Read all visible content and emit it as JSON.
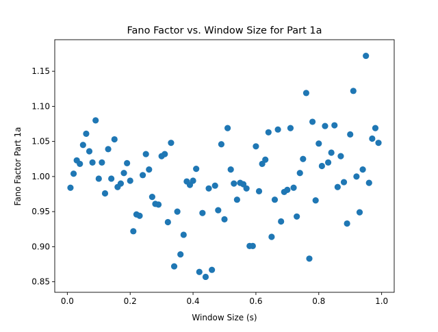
{
  "chart_data": {
    "type": "scatter",
    "title": "Fano Factor vs. Window Size for Part 1a",
    "xlabel": "Window Size (s)",
    "ylabel": "Fano Factor Part 1a",
    "xlim": [
      -0.04,
      1.04
    ],
    "ylim": [
      0.835,
      1.195
    ],
    "xticks": [
      0.0,
      0.2,
      0.4,
      0.6,
      0.8,
      1.0
    ],
    "xtick_labels": [
      "0.0",
      "0.2",
      "0.4",
      "0.6",
      "0.8",
      "1.0"
    ],
    "yticks": [
      0.85,
      0.9,
      0.95,
      1.0,
      1.05,
      1.1,
      1.15
    ],
    "ytick_labels": [
      "0.85",
      "0.90",
      "0.95",
      "1.00",
      "1.05",
      "1.10",
      "1.15"
    ],
    "grid": false,
    "marker_color": "#1f77b4",
    "series": [
      {
        "points": [
          [
            0.01,
            0.984
          ],
          [
            0.02,
            1.004
          ],
          [
            0.03,
            1.023
          ],
          [
            0.04,
            1.018
          ],
          [
            0.05,
            1.045
          ],
          [
            0.06,
            1.061
          ],
          [
            0.07,
            1.036
          ],
          [
            0.08,
            1.02
          ],
          [
            0.09,
            1.08
          ],
          [
            0.1,
            0.997
          ],
          [
            0.11,
            1.02
          ],
          [
            0.12,
            0.976
          ],
          [
            0.13,
            1.039
          ],
          [
            0.14,
            0.997
          ],
          [
            0.15,
            1.053
          ],
          [
            0.16,
            0.985
          ],
          [
            0.17,
            0.99
          ],
          [
            0.18,
            1.005
          ],
          [
            0.19,
            1.019
          ],
          [
            0.2,
            0.994
          ],
          [
            0.21,
            0.922
          ],
          [
            0.22,
            0.946
          ],
          [
            0.23,
            0.944
          ],
          [
            0.24,
            1.002
          ],
          [
            0.25,
            1.032
          ],
          [
            0.26,
            1.01
          ],
          [
            0.27,
            0.971
          ],
          [
            0.28,
            0.961
          ],
          [
            0.29,
            0.96
          ],
          [
            0.3,
            1.029
          ],
          [
            0.31,
            1.032
          ],
          [
            0.32,
            0.935
          ],
          [
            0.33,
            1.048
          ],
          [
            0.34,
            0.872
          ],
          [
            0.35,
            0.95
          ],
          [
            0.36,
            0.889
          ],
          [
            0.37,
            0.917
          ],
          [
            0.38,
            0.993
          ],
          [
            0.39,
            0.988
          ],
          [
            0.4,
            0.994
          ],
          [
            0.41,
            1.011
          ],
          [
            0.42,
            0.864
          ],
          [
            0.43,
            0.948
          ],
          [
            0.44,
            0.857
          ],
          [
            0.45,
            0.983
          ],
          [
            0.46,
            0.867
          ],
          [
            0.47,
            0.987
          ],
          [
            0.48,
            0.952
          ],
          [
            0.49,
            1.046
          ],
          [
            0.5,
            0.939
          ],
          [
            0.51,
            1.069
          ],
          [
            0.52,
            1.01
          ],
          [
            0.53,
            0.99
          ],
          [
            0.54,
            0.967
          ],
          [
            0.55,
            0.991
          ],
          [
            0.56,
            0.989
          ],
          [
            0.57,
            0.983
          ],
          [
            0.58,
            0.901
          ],
          [
            0.59,
            0.901
          ],
          [
            0.6,
            1.043
          ],
          [
            0.61,
            0.979
          ],
          [
            0.62,
            1.018
          ],
          [
            0.63,
            1.024
          ],
          [
            0.64,
            1.063
          ],
          [
            0.65,
            0.914
          ],
          [
            0.66,
            0.967
          ],
          [
            0.67,
            1.067
          ],
          [
            0.68,
            0.936
          ],
          [
            0.69,
            0.978
          ],
          [
            0.7,
            0.981
          ],
          [
            0.71,
            1.069
          ],
          [
            0.72,
            0.984
          ],
          [
            0.73,
            0.943
          ],
          [
            0.74,
            1.005
          ],
          [
            0.75,
            1.025
          ],
          [
            0.76,
            1.119
          ],
          [
            0.77,
            0.883
          ],
          [
            0.78,
            1.078
          ],
          [
            0.79,
            0.966
          ],
          [
            0.8,
            1.047
          ],
          [
            0.81,
            1.015
          ],
          [
            0.82,
            1.072
          ],
          [
            0.83,
            1.02
          ],
          [
            0.84,
            1.034
          ],
          [
            0.85,
            1.073
          ],
          [
            0.86,
            0.985
          ],
          [
            0.87,
            1.029
          ],
          [
            0.88,
            0.992
          ],
          [
            0.89,
            0.933
          ],
          [
            0.9,
            1.06
          ],
          [
            0.91,
            1.122
          ],
          [
            0.92,
            1.0
          ],
          [
            0.93,
            0.949
          ],
          [
            0.94,
            1.01
          ],
          [
            0.95,
            1.172
          ],
          [
            0.96,
            0.991
          ],
          [
            0.97,
            1.054
          ],
          [
            0.98,
            1.069
          ],
          [
            0.99,
            1.048
          ]
        ]
      }
    ]
  }
}
